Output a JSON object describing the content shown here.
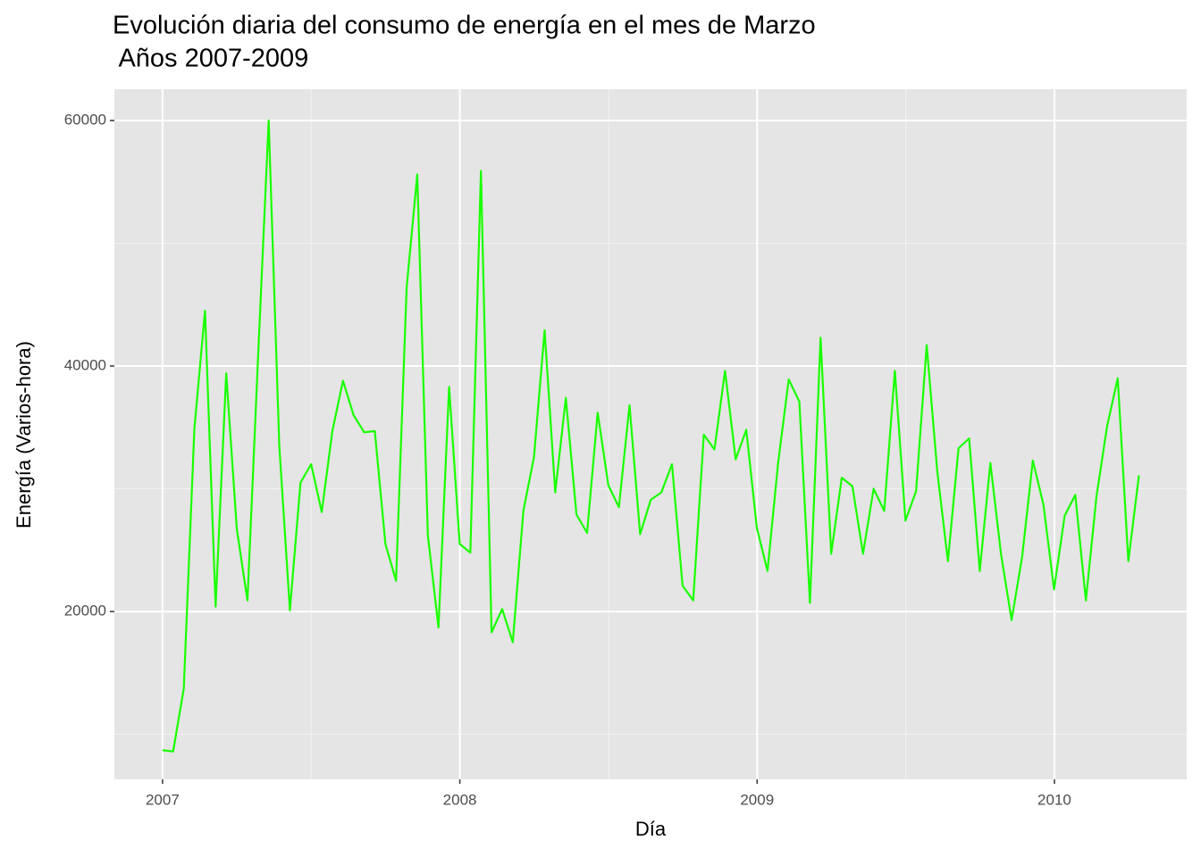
{
  "chart_data": {
    "type": "line",
    "title": "Evolución diaria del consumo de energía en el mes de Marzo",
    "subtitle": " Años 2007-2009",
    "x_label": "Día",
    "y_label": "Energía (Varios-hora)",
    "x": [
      2007,
      2007.0357,
      2007.0714,
      2007.1071,
      2007.1428,
      2007.1785,
      2007.2142,
      2007.2499,
      2007.2856,
      2007.3213,
      2007.357,
      2007.3927,
      2007.4284,
      2007.4641,
      2007.4998,
      2007.5355,
      2007.5712,
      2007.6069,
      2007.6426,
      2007.6783,
      2007.714,
      2007.7497,
      2007.7854,
      2007.8211,
      2007.8568,
      2007.8925,
      2007.9282,
      2007.9639,
      2007.9996,
      2008.0353,
      2008.071,
      2008.1067,
      2008.1424,
      2008.1781,
      2008.2138,
      2008.2495,
      2008.2852,
      2008.3209,
      2008.3566,
      2008.3923,
      2008.428,
      2008.4637,
      2008.4994,
      2008.5351,
      2008.5708,
      2008.6065,
      2008.6422,
      2008.6779,
      2008.7136,
      2008.7493,
      2008.785,
      2008.8207,
      2008.8564,
      2008.8921,
      2008.9278,
      2008.9635,
      2008.9992,
      2009.0349,
      2009.0706,
      2009.1063,
      2009.142,
      2009.1777,
      2009.2134,
      2009.2491,
      2009.2848,
      2009.3205,
      2009.3562,
      2009.3919,
      2009.4276,
      2009.4633,
      2009.499,
      2009.5347,
      2009.5704,
      2009.6061,
      2009.6418,
      2009.6775,
      2009.7132,
      2009.7489,
      2009.7846,
      2009.8203,
      2009.856,
      2009.8917,
      2009.9274,
      2009.9631,
      2009.9988,
      2010.0345,
      2010.0702,
      2010.1059,
      2010.1416,
      2010.1773,
      2010.213,
      2010.2487,
      2010.2844
    ],
    "series": [
      {
        "color": "#1aff00",
        "values": [
          8700,
          8600,
          13700,
          34900,
          44500,
          20400,
          39400,
          26700,
          20900,
          40700,
          60000,
          33500,
          20100,
          30500,
          32000,
          28100,
          34700,
          38800,
          36000,
          34600,
          34700,
          25500,
          22500,
          46400,
          55600,
          26200,
          18700,
          38300,
          25500,
          24800,
          55900,
          18300,
          20200,
          17500,
          28200,
          32600,
          42900,
          29700,
          37400,
          27900,
          26400,
          36200,
          30300,
          28500,
          36800,
          26300,
          29100,
          29700,
          32000,
          22100,
          20900,
          34400,
          33200,
          39600,
          32400,
          34800,
          26800,
          23300,
          32100,
          38900,
          37100,
          20700,
          42300,
          24700,
          30900,
          30200,
          24700,
          30000,
          28200,
          39600,
          27400,
          29800,
          41700,
          31400,
          24100,
          33300,
          34100,
          23300,
          32100,
          24700,
          19300,
          24500,
          32300,
          28700,
          21800,
          27800,
          29500,
          20900,
          29400,
          35100,
          39000,
          24100,
          31100
        ]
      }
    ],
    "xlim": [
      2006.838,
      2010.445
    ],
    "xticks": [
      2007,
      2008,
      2009,
      2010
    ],
    "xminor": [
      2007.5,
      2008.5,
      2009.5
    ],
    "ylim": [
      6327,
      62545
    ],
    "yticks": [
      20000,
      40000,
      60000
    ],
    "yminor": [
      10000,
      30000,
      50000
    ],
    "grid": true
  }
}
